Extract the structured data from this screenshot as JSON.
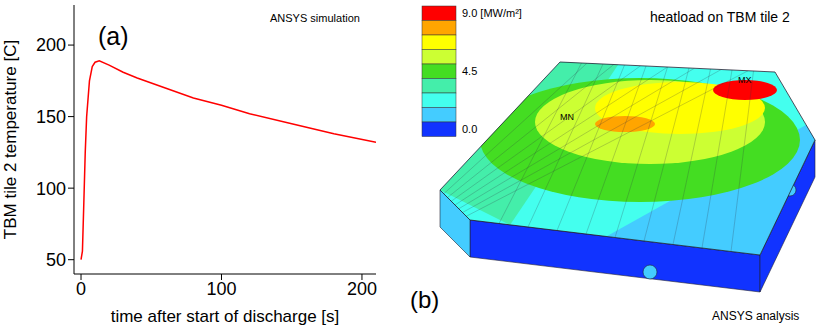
{
  "chart_data": [
    {
      "type": "line",
      "panel": "(a)",
      "annotations": [
        "ANSYS simulation"
      ],
      "x_label": "time after start of discharge [s]",
      "y_label": "TBM tile 2 temperature [C]",
      "x": [
        0,
        1,
        2,
        3,
        4,
        6,
        8,
        10,
        13,
        20,
        30,
        40,
        60,
        80,
        100,
        120,
        150,
        180,
        210
      ],
      "values": [
        50,
        56,
        90,
        125,
        150,
        175,
        185,
        188,
        189,
        186,
        181,
        177,
        170,
        163,
        158,
        152,
        145,
        138,
        132
      ],
      "color": "#ff0000",
      "xlim": [
        -5,
        210
      ],
      "xticks": [
        0,
        100,
        200
      ],
      "ylim": [
        40,
        228
      ],
      "yticks": [
        50,
        100,
        150,
        200
      ]
    },
    {
      "type": "contour",
      "panel": "(b)",
      "title": "heatload on TBM tile 2",
      "annotations": [
        "ANSYS analysis",
        "MX",
        "MN"
      ],
      "colorbar": {
        "range": [
          0,
          9
        ],
        "ticks": [
          {
            "value": 9,
            "label": "9.0 [MW/m²]"
          },
          4.5,
          {
            "value": 0,
            "label": "0.0"
          }
        ],
        "colors": [
          "#ff0000",
          "#ffa500",
          "#ffff00",
          "#ccff33",
          "#44dd22",
          "#44eeaa",
          "#44ffee",
          "#44ccff",
          "#1133ff"
        ]
      }
    }
  ]
}
